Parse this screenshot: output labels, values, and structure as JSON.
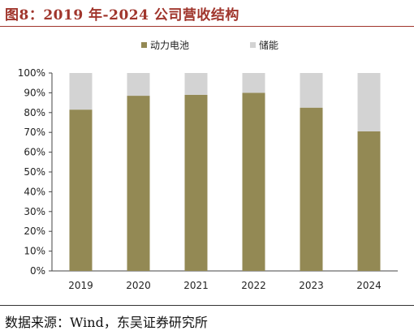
{
  "title": "图8：2019 年-2024 公司营收结构",
  "source": "数据来源：Wind，东吴证券研究所",
  "colors": {
    "power": "#938954",
    "storage": "#d3d3d3",
    "title": "#a0352c"
  },
  "chart_data": {
    "type": "bar",
    "stacked": true,
    "categories": [
      "2019",
      "2020",
      "2021",
      "2022",
      "2023",
      "2024"
    ],
    "series": [
      {
        "name": "动力电池",
        "values": [
          81.5,
          88.5,
          89,
          90,
          82.5,
          70.5
        ]
      },
      {
        "name": "储能",
        "values": [
          18.5,
          11.5,
          11,
          10,
          17.5,
          29.5
        ]
      }
    ],
    "ylim": [
      0,
      100
    ],
    "yticks": [
      "0%",
      "10%",
      "20%",
      "30%",
      "40%",
      "50%",
      "60%",
      "70%",
      "80%",
      "90%",
      "100%"
    ],
    "grid": false,
    "legend": "top-center"
  }
}
